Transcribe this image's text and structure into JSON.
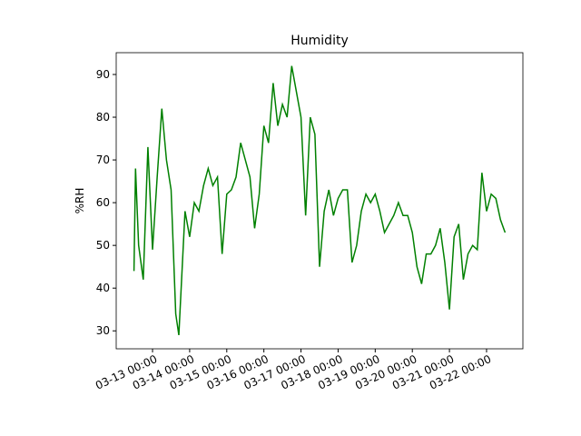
{
  "chart_data": {
    "type": "line",
    "title": "Humidity",
    "y_label": "%RH",
    "color": "#008000",
    "x": [
      "03-12 12:00",
      "03-12 13:00",
      "03-12 15:00",
      "03-12 18:00",
      "03-12 21:00",
      "03-13 00:00",
      "03-13 03:00",
      "03-13 06:00",
      "03-13 09:00",
      "03-13 12:00",
      "03-13 15:00",
      "03-13 17:00",
      "03-13 21:00",
      "03-14 00:00",
      "03-14 03:00",
      "03-14 06:00",
      "03-14 09:00",
      "03-14 12:00",
      "03-14 15:00",
      "03-14 18:00",
      "03-14 21:00",
      "03-15 00:00",
      "03-15 03:00",
      "03-15 06:00",
      "03-15 09:00",
      "03-15 12:00",
      "03-15 15:00",
      "03-15 18:00",
      "03-15 21:00",
      "03-16 00:00",
      "03-16 03:00",
      "03-16 06:00",
      "03-16 09:00",
      "03-16 12:00",
      "03-16 15:00",
      "03-16 18:00",
      "03-16 21:00",
      "03-17 00:00",
      "03-17 03:00",
      "03-17 06:00",
      "03-17 09:00",
      "03-17 12:00",
      "03-17 15:00",
      "03-17 18:00",
      "03-17 21:00",
      "03-18 00:00",
      "03-18 03:00",
      "03-18 06:00",
      "03-18 09:00",
      "03-18 12:00",
      "03-18 15:00",
      "03-18 18:00",
      "03-18 21:00",
      "03-19 00:00",
      "03-19 03:00",
      "03-19 06:00",
      "03-19 09:00",
      "03-19 12:00",
      "03-19 15:00",
      "03-19 18:00",
      "03-19 21:00",
      "03-20 00:00",
      "03-20 03:00",
      "03-20 06:00",
      "03-20 09:00",
      "03-20 12:00",
      "03-20 15:00",
      "03-20 18:00",
      "03-20 21:00",
      "03-21 00:00",
      "03-21 03:00",
      "03-21 06:00",
      "03-21 09:00",
      "03-21 12:00",
      "03-21 15:00",
      "03-21 18:00",
      "03-21 21:00",
      "03-22 00:00",
      "03-22 03:00",
      "03-22 06:00",
      "03-22 09:00",
      "03-22 12:00"
    ],
    "values": [
      44,
      68,
      50,
      42,
      73,
      49,
      66,
      82,
      70,
      63,
      34,
      29,
      58,
      52,
      60,
      58,
      64,
      68,
      64,
      66,
      48,
      62,
      63,
      66,
      74,
      70,
      66,
      54,
      62,
      78,
      74,
      88,
      78,
      83,
      80,
      92,
      86,
      80,
      57,
      80,
      76,
      45,
      58,
      63,
      57,
      61,
      63,
      63,
      46,
      50,
      58,
      62,
      60,
      62,
      58,
      53,
      55,
      57,
      60,
      57,
      57,
      53,
      45,
      41,
      48,
      48,
      50,
      54,
      46,
      35,
      52,
      55,
      42,
      48,
      50,
      49,
      67,
      58,
      62,
      61,
      56,
      53
    ],
    "xlim": [
      "03-12 00:30",
      "03-22 23:30"
    ],
    "xticks": [
      "03-13 00:00",
      "03-14 00:00",
      "03-15 00:00",
      "03-16 00:00",
      "03-17 00:00",
      "03-18 00:00",
      "03-19 00:00",
      "03-20 00:00",
      "03-21 00:00",
      "03-22 00:00"
    ],
    "ylim": [
      25.8,
      95.1
    ],
    "yticks": [
      30,
      40,
      50,
      60,
      70,
      80,
      90
    ]
  }
}
